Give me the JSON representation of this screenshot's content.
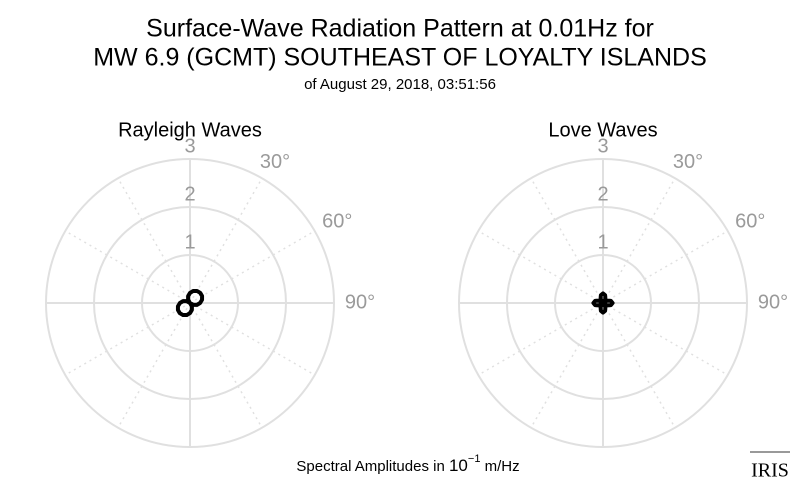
{
  "title_lines": [
    "Surface-Wave Radiation Pattern at 0.01Hz for",
    "MW 6.9 (GCMT) SOUTHEAST OF LOYALTY ISLANDS"
  ],
  "subtitle": "of August 29, 2018, 03:51:56",
  "footer": {
    "text": "Spectral Amplitudes in",
    "base": "10",
    "exponent": "−1",
    "unit": "m/Hz"
  },
  "logo": "IRIS",
  "chart_data": [
    {
      "type": "polar",
      "title": "Rayleigh Waves",
      "theta": [
        0,
        15,
        30,
        45,
        60,
        75,
        90,
        105,
        120,
        135,
        150,
        165,
        180,
        195,
        210,
        225,
        240,
        255,
        270,
        285,
        300,
        315,
        330,
        345
      ],
      "series": [
        {
          "color": "#000000",
          "values": [
            0.21,
            0.26,
            0.29,
            0.3,
            0.29,
            0.26,
            0.21,
            0.15,
            0.08,
            0,
            0.08,
            0.15,
            0.21,
            0.26,
            0.29,
            0.3,
            0.29,
            0.26,
            0.21,
            0.15,
            0.08,
            0,
            0.08,
            0.15
          ]
        }
      ],
      "rlim": [
        0,
        3
      ],
      "rticks": [
        1,
        2,
        3
      ],
      "thetaticks": [
        {
          "value": 30,
          "label": "30°"
        },
        {
          "value": 60,
          "label": "60°"
        },
        {
          "value": 90,
          "label": "90°"
        }
      ],
      "grid": true
    },
    {
      "type": "polar",
      "title": "Love Waves",
      "theta": [
        0,
        15,
        30,
        45,
        60,
        75,
        90,
        105,
        120,
        135,
        150,
        165,
        180,
        195,
        210,
        225,
        240,
        255,
        270,
        285,
        300,
        315,
        330,
        345
      ],
      "series": [
        {
          "color": "#000000",
          "values": [
            0.2,
            0.17,
            0.1,
            0,
            0.1,
            0.17,
            0.2,
            0.17,
            0.1,
            0,
            0.1,
            0.17,
            0.2,
            0.17,
            0.1,
            0,
            0.1,
            0.17,
            0.2,
            0.17,
            0.1,
            0,
            0.1,
            0.17
          ]
        }
      ],
      "rlim": [
        0,
        3
      ],
      "rticks": [
        1,
        2,
        3
      ],
      "thetaticks": [
        {
          "value": 30,
          "label": "30°"
        },
        {
          "value": 60,
          "label": "60°"
        },
        {
          "value": 90,
          "label": "90°"
        }
      ],
      "grid": true
    }
  ]
}
